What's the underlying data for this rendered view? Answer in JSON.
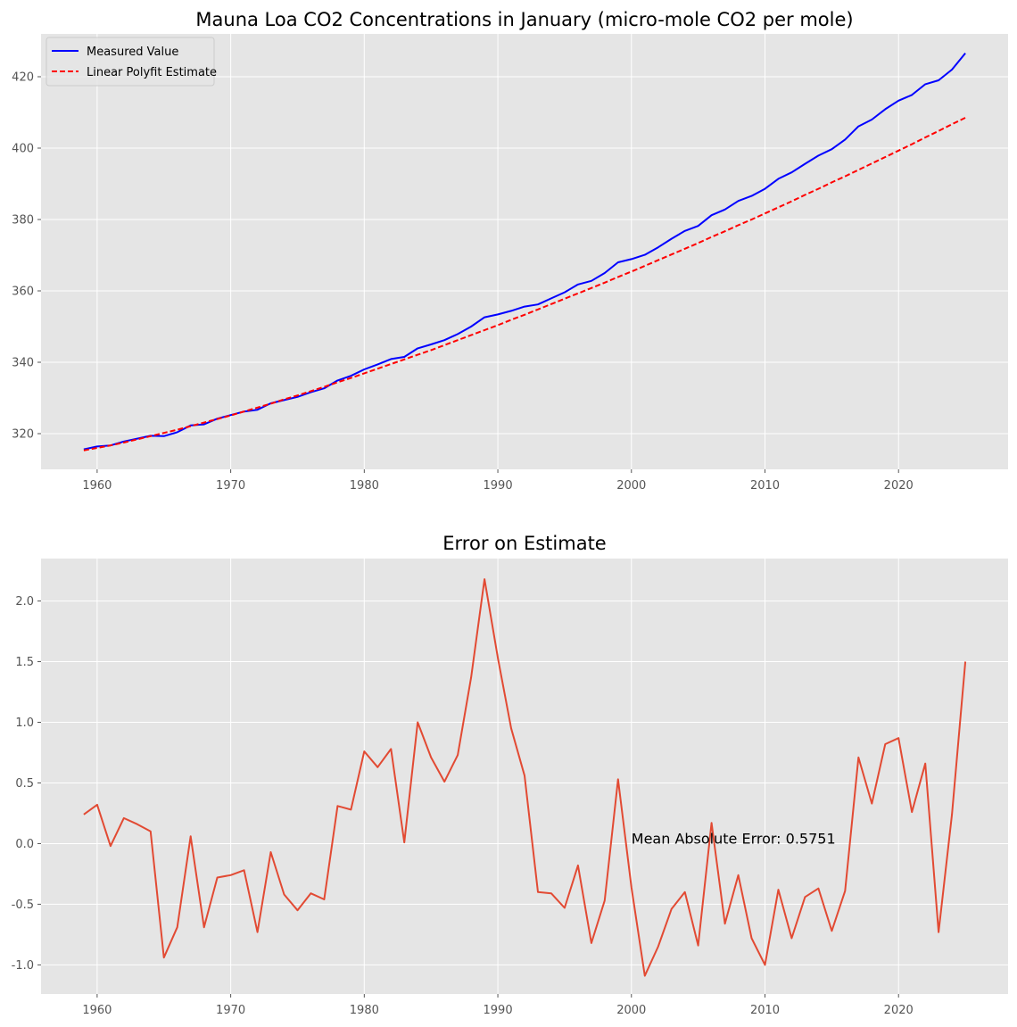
{
  "chart_data": [
    {
      "type": "line",
      "title": "Mauna Loa CO2 Concentrations in January (micro-mole CO2 per mole)",
      "xlabel": "",
      "ylabel": "",
      "xlim": [
        1955.8,
        2028.2
      ],
      "ylim": [
        310,
        432
      ],
      "xticks": [
        1960,
        1970,
        1980,
        1990,
        2000,
        2010,
        2020
      ],
      "yticks": [
        320,
        340,
        360,
        380,
        400,
        420
      ],
      "grid": true,
      "legend": {
        "position": "top-left",
        "entries": [
          "Measured Value",
          "Linear Polyfit Estimate"
        ]
      },
      "x": [
        1959,
        1960,
        1961,
        1962,
        1963,
        1964,
        1965,
        1966,
        1967,
        1968,
        1969,
        1970,
        1971,
        1972,
        1973,
        1974,
        1975,
        1976,
        1977,
        1978,
        1979,
        1980,
        1981,
        1982,
        1983,
        1984,
        1985,
        1986,
        1987,
        1988,
        1989,
        1990,
        1991,
        1992,
        1993,
        1994,
        1995,
        1996,
        1997,
        1998,
        1999,
        2000,
        2001,
        2002,
        2003,
        2004,
        2005,
        2006,
        2007,
        2008,
        2009,
        2010,
        2011,
        2012,
        2013,
        2014,
        2015,
        2016,
        2017,
        2018,
        2019,
        2020,
        2021,
        2022,
        2023,
        2024,
        2025
      ],
      "series": [
        {
          "name": "Measured Value",
          "color": "#0000ff",
          "style": "solid",
          "values": [
            315.6,
            316.4,
            316.7,
            317.8,
            318.6,
            319.4,
            319.3,
            320.4,
            322.3,
            322.6,
            324.2,
            325.2,
            326.2,
            326.7,
            328.5,
            329.4,
            330.3,
            331.6,
            332.7,
            334.9,
            336.2,
            338.0,
            339.4,
            340.9,
            341.5,
            343.9,
            345.0,
            346.2,
            347.9,
            350.0,
            352.6,
            353.4,
            354.4,
            355.6,
            356.2,
            357.9,
            359.6,
            361.8,
            362.8,
            365.0,
            368.0,
            368.9,
            370.1,
            372.2,
            374.6,
            376.8,
            378.2,
            381.2,
            382.8,
            385.2,
            386.6,
            388.6,
            391.4,
            393.2,
            395.6,
            397.9,
            399.7,
            402.4,
            406.1,
            408.0,
            410.9,
            413.3,
            414.9,
            417.9,
            419.0,
            422.0,
            426.6
          ]
        },
        {
          "name": "Linear Polyfit Estimate",
          "color": "#ff0000",
          "style": "dashed",
          "values": [
            315.3,
            316.0,
            316.7,
            317.5,
            318.4,
            319.3,
            320.2,
            321.1,
            322.1,
            323.1,
            324.1,
            325.1,
            326.2,
            327.3,
            328.4,
            329.6,
            330.7,
            331.9,
            333.1,
            334.4,
            335.6,
            336.9,
            338.2,
            339.5,
            340.8,
            342.1,
            343.4,
            344.8,
            346.2,
            347.6,
            349.0,
            350.4,
            351.9,
            353.3,
            354.8,
            356.3,
            357.8,
            359.3,
            360.8,
            362.3,
            363.9,
            365.4,
            367.0,
            368.6,
            370.2,
            371.8,
            373.4,
            375.1,
            376.7,
            378.4,
            380.0,
            381.7,
            383.4,
            385.1,
            386.9,
            388.6,
            390.4,
            392.1,
            393.9,
            395.7,
            397.5,
            399.3,
            401.1,
            403.0,
            404.8,
            406.7,
            408.5
          ]
        }
      ]
    },
    {
      "type": "line",
      "title": "Error on Estimate",
      "xlabel": "",
      "ylabel": "",
      "xlim": [
        1955.8,
        2028.2
      ],
      "ylim": [
        -1.24,
        2.35
      ],
      "xticks": [
        1960,
        1970,
        1980,
        1990,
        2000,
        2010,
        2020
      ],
      "yticks": [
        -1.0,
        -0.5,
        0.0,
        0.5,
        1.0,
        1.5,
        2.0
      ],
      "ytick_labels": [
        "-1.0",
        "-0.5",
        "0.0",
        "0.5",
        "1.0",
        "1.5",
        "2.0"
      ],
      "grid": true,
      "annotation": {
        "text": "Mean Absolute Error: 0.5751",
        "x": 2000,
        "y": 0.0
      },
      "x": [
        1959,
        1960,
        1961,
        1962,
        1963,
        1964,
        1965,
        1966,
        1967,
        1968,
        1969,
        1970,
        1971,
        1972,
        1973,
        1974,
        1975,
        1976,
        1977,
        1978,
        1979,
        1980,
        1981,
        1982,
        1983,
        1984,
        1985,
        1986,
        1987,
        1988,
        1989,
        1990,
        1991,
        1992,
        1993,
        1994,
        1995,
        1996,
        1997,
        1998,
        1999,
        2000,
        2001,
        2002,
        2003,
        2004,
        2005,
        2006,
        2007,
        2008,
        2009,
        2010,
        2011,
        2012,
        2013,
        2014,
        2015,
        2016,
        2017,
        2018,
        2019,
        2020,
        2021,
        2022,
        2023,
        2024,
        2025
      ],
      "series": [
        {
          "name": "Error",
          "color": "#e24a33",
          "style": "solid",
          "values": [
            0.24,
            0.32,
            -0.02,
            0.21,
            0.16,
            0.1,
            -0.94,
            -0.69,
            0.06,
            -0.69,
            -0.28,
            -0.26,
            -0.22,
            -0.73,
            -0.07,
            -0.42,
            -0.55,
            -0.41,
            -0.46,
            0.31,
            0.28,
            0.76,
            0.63,
            0.78,
            0.01,
            1.0,
            0.71,
            0.51,
            0.73,
            1.37,
            2.18,
            1.53,
            0.95,
            0.56,
            -0.4,
            -0.41,
            -0.53,
            -0.18,
            -0.82,
            -0.47,
            0.53,
            -0.36,
            -1.09,
            -0.85,
            -0.54,
            -0.4,
            -0.84,
            0.17,
            -0.66,
            -0.26,
            -0.78,
            -1.0,
            -0.38,
            -0.78,
            -0.44,
            -0.37,
            -0.72,
            -0.39,
            0.71,
            0.33,
            0.82,
            0.87,
            0.26,
            0.66,
            -0.73,
            0.24,
            1.5
          ]
        }
      ]
    }
  ]
}
